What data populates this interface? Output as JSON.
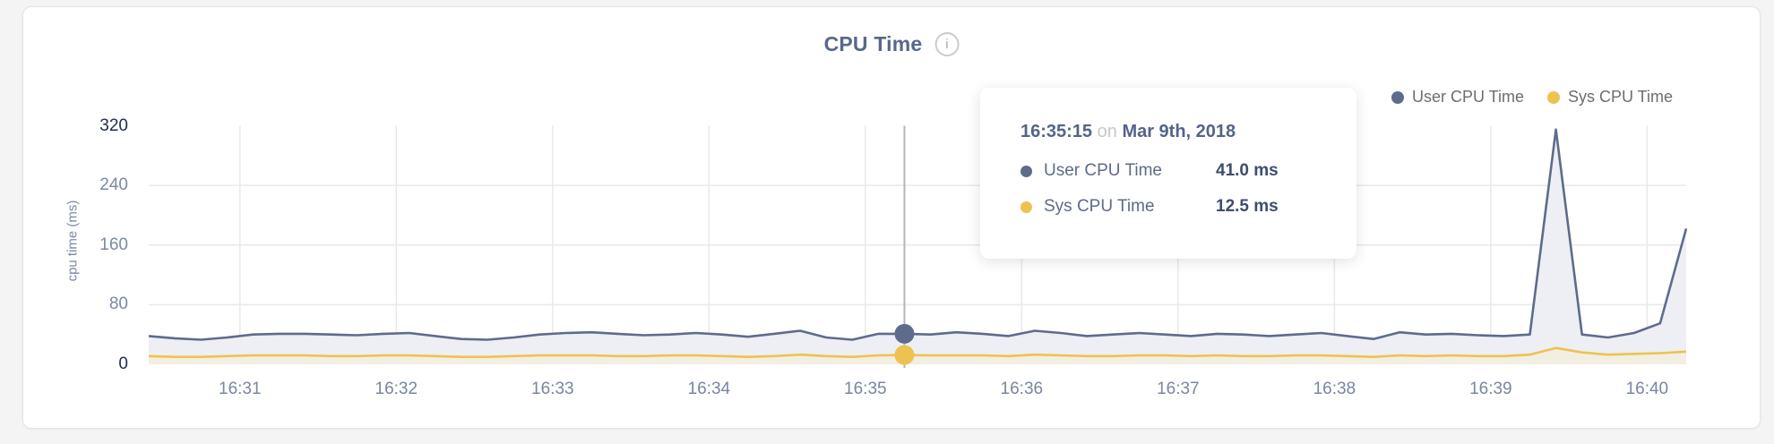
{
  "header": {
    "title": "CPU Time",
    "info_glyph": "i"
  },
  "legend": {
    "items": [
      {
        "label": "User CPU Time",
        "color": "#5d6c8c"
      },
      {
        "label": "Sys CPU Time",
        "color": "#eec24f"
      }
    ]
  },
  "tooltip": {
    "time": "16:35:15",
    "on_word": "on",
    "date": "Mar 9th, 2018",
    "rows": [
      {
        "label": "User CPU Time",
        "value": "41.0 ms",
        "color": "#5d6c8c"
      },
      {
        "label": "Sys CPU Time",
        "value": "12.5 ms",
        "color": "#eec24f"
      }
    ]
  },
  "chart_data": {
    "type": "area",
    "title": "CPU Time",
    "xlabel": "",
    "ylabel": "cpu time (ms)",
    "ylim": [
      0,
      320
    ],
    "y_ticks": [
      0,
      80,
      160,
      240,
      320
    ],
    "x_tick_labels": [
      "16:31",
      "16:32",
      "16:33",
      "16:34",
      "16:35",
      "16:36",
      "16:37",
      "16:38",
      "16:39",
      "16:40"
    ],
    "grid": true,
    "legend_position": "top-right",
    "x": [
      "16:30:25",
      "16:30:35",
      "16:30:45",
      "16:30:55",
      "16:31:05",
      "16:31:15",
      "16:31:25",
      "16:31:35",
      "16:31:45",
      "16:31:55",
      "16:32:05",
      "16:32:15",
      "16:32:25",
      "16:32:35",
      "16:32:45",
      "16:32:55",
      "16:33:05",
      "16:33:15",
      "16:33:25",
      "16:33:35",
      "16:33:45",
      "16:33:55",
      "16:34:05",
      "16:34:15",
      "16:34:25",
      "16:34:35",
      "16:34:45",
      "16:34:55",
      "16:35:05",
      "16:35:15",
      "16:35:25",
      "16:35:35",
      "16:35:45",
      "16:35:55",
      "16:36:05",
      "16:36:15",
      "16:36:25",
      "16:36:35",
      "16:36:45",
      "16:36:55",
      "16:37:05",
      "16:37:15",
      "16:37:25",
      "16:37:35",
      "16:37:45",
      "16:37:55",
      "16:38:05",
      "16:38:15",
      "16:38:25",
      "16:38:35",
      "16:38:45",
      "16:38:55",
      "16:39:05",
      "16:39:15",
      "16:39:25",
      "16:39:35",
      "16:39:45",
      "16:39:55",
      "16:40:05",
      "16:40:15"
    ],
    "series": [
      {
        "name": "User CPU Time",
        "color": "#5d6c8c",
        "fill": "#edeff4",
        "unit": "ms",
        "values": [
          38,
          35,
          33,
          36,
          40,
          41,
          41,
          40,
          39,
          41,
          42,
          38,
          34,
          33,
          36,
          40,
          42,
          43,
          41,
          39,
          40,
          42,
          40,
          37,
          41,
          45,
          36,
          33,
          41,
          41,
          40,
          43,
          41,
          38,
          45,
          42,
          38,
          40,
          42,
          40,
          38,
          41,
          40,
          38,
          40,
          42,
          38,
          34,
          43,
          40,
          41,
          39,
          38,
          40,
          315,
          40,
          36,
          42,
          55,
          182
        ]
      },
      {
        "name": "Sys CPU Time",
        "color": "#eec24f",
        "fill": "#f2efe2",
        "unit": "ms",
        "values": [
          11,
          10,
          10,
          11,
          12,
          12,
          12,
          11,
          11,
          12,
          12,
          11,
          10,
          10,
          11,
          12,
          12,
          12,
          11,
          11,
          12,
          12,
          11,
          10,
          11,
          13,
          11,
          10,
          12,
          12.5,
          12,
          12,
          12,
          11,
          13,
          12,
          11,
          11,
          12,
          12,
          11,
          12,
          11,
          11,
          12,
          12,
          11,
          10,
          12,
          11,
          12,
          11,
          11,
          13,
          22,
          16,
          13,
          14,
          15,
          17
        ]
      }
    ],
    "highlight": {
      "index": 29,
      "time": "16:35:15",
      "values": [
        41.0,
        12.5
      ]
    },
    "colors": {
      "crosshair": "#b5b5b8",
      "gridline": "#e9e9ec",
      "edge_tick": "#1f2c50",
      "mid_tick": "#7b89a4"
    }
  }
}
